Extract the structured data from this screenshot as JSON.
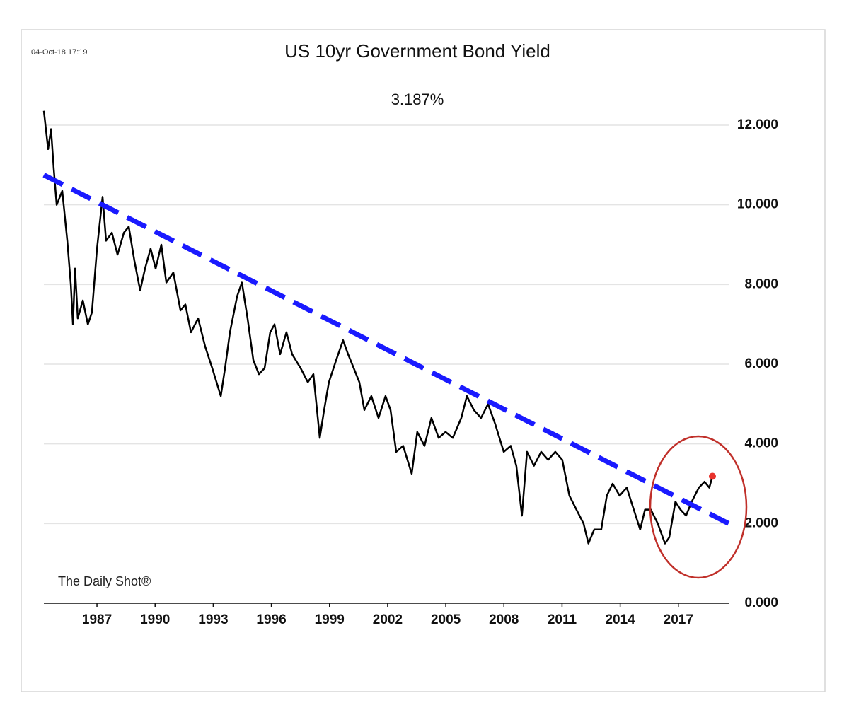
{
  "chart_data": {
    "type": "line",
    "title": "US 10yr Government Bond Yield",
    "subtitle": "3.187%",
    "timestamp": "04-Oct-18 17:19",
    "watermark": "The Daily Shot®",
    "color": "#000000",
    "marker_color": "#e8322c",
    "grid": true,
    "x": [
      1984.26,
      1984.48,
      1984.63,
      1984.77,
      1984.92,
      1985.21,
      1985.47,
      1985.65,
      1985.76,
      1985.87,
      1986.01,
      1986.27,
      1986.53,
      1986.74,
      1987.0,
      1987.29,
      1987.47,
      1987.77,
      1988.06,
      1988.39,
      1988.64,
      1988.93,
      1989.23,
      1989.48,
      1989.77,
      1990.03,
      1990.32,
      1990.58,
      1990.94,
      1991.31,
      1991.56,
      1991.85,
      1992.22,
      1992.58,
      1992.95,
      1993.39,
      1993.61,
      1993.86,
      1994.23,
      1994.48,
      1994.77,
      1995.07,
      1995.36,
      1995.65,
      1995.94,
      1996.16,
      1996.45,
      1996.78,
      1997.07,
      1997.51,
      1997.88,
      1998.17,
      1998.5,
      1998.72,
      1998.97,
      1999.34,
      1999.7,
      1999.96,
      2000.25,
      2000.54,
      2000.8,
      2001.16,
      2001.53,
      2001.89,
      2002.15,
      2002.44,
      2002.8,
      2003.24,
      2003.53,
      2003.9,
      2004.26,
      2004.63,
      2004.99,
      2005.36,
      2005.8,
      2006.09,
      2006.45,
      2006.82,
      2007.18,
      2007.55,
      2007.99,
      2008.35,
      2008.64,
      2008.93,
      2009.19,
      2009.55,
      2009.92,
      2010.28,
      2010.65,
      2011.01,
      2011.38,
      2011.74,
      2012.11,
      2012.36,
      2012.66,
      2013.02,
      2013.31,
      2013.61,
      2013.97,
      2014.34,
      2014.7,
      2015.03,
      2015.28,
      2015.58,
      2015.94,
      2016.31,
      2016.53,
      2016.85,
      2017.11,
      2017.4,
      2017.69,
      2018.06,
      2018.35,
      2018.6,
      2018.76
    ],
    "values": [
      12.36,
      11.4,
      11.9,
      10.9,
      10.0,
      10.35,
      9.1,
      8.0,
      7.0,
      8.4,
      7.15,
      7.6,
      7.0,
      7.3,
      8.9,
      10.2,
      9.1,
      9.3,
      8.75,
      9.3,
      9.45,
      8.6,
      7.85,
      8.4,
      8.9,
      8.4,
      9.0,
      8.05,
      8.3,
      7.35,
      7.5,
      6.8,
      7.15,
      6.45,
      5.9,
      5.2,
      5.9,
      6.8,
      7.7,
      8.05,
      7.15,
      6.1,
      5.75,
      5.9,
      6.8,
      7.0,
      6.25,
      6.8,
      6.25,
      5.9,
      5.55,
      5.75,
      4.15,
      4.85,
      5.55,
      6.1,
      6.6,
      6.25,
      5.9,
      5.55,
      4.85,
      5.2,
      4.65,
      5.2,
      4.85,
      3.8,
      3.95,
      3.25,
      4.3,
      3.95,
      4.65,
      4.15,
      4.3,
      4.15,
      4.65,
      5.2,
      4.85,
      4.65,
      5.0,
      4.5,
      3.8,
      3.95,
      3.45,
      2.2,
      3.8,
      3.45,
      3.8,
      3.6,
      3.8,
      3.6,
      2.7,
      2.35,
      2.0,
      1.5,
      1.85,
      1.85,
      2.7,
      3.0,
      2.7,
      2.9,
      2.35,
      1.85,
      2.35,
      2.35,
      2.0,
      1.5,
      1.65,
      2.55,
      2.35,
      2.2,
      2.55,
      2.9,
      3.05,
      2.9,
      3.187
    ],
    "trend": {
      "x": [
        1984.26,
        2019.6
      ],
      "values": [
        10.75,
        2.0
      ],
      "color": "#1a1aff"
    },
    "xlim": [
      1984.26,
      2019.6
    ],
    "xticks": [
      1987,
      1990,
      1993,
      1996,
      1999,
      2002,
      2005,
      2008,
      2011,
      2014,
      2017
    ],
    "ylim": [
      0,
      12
    ],
    "yticks": [
      {
        "value": 0,
        "label": "0.000"
      },
      {
        "value": 2,
        "label": "2.000"
      },
      {
        "value": 4,
        "label": "4.000"
      },
      {
        "value": 6,
        "label": "6.000"
      },
      {
        "value": 8,
        "label": "8.000"
      },
      {
        "value": 10,
        "label": "10.000"
      },
      {
        "value": 12,
        "label": "12.000"
      }
    ]
  }
}
